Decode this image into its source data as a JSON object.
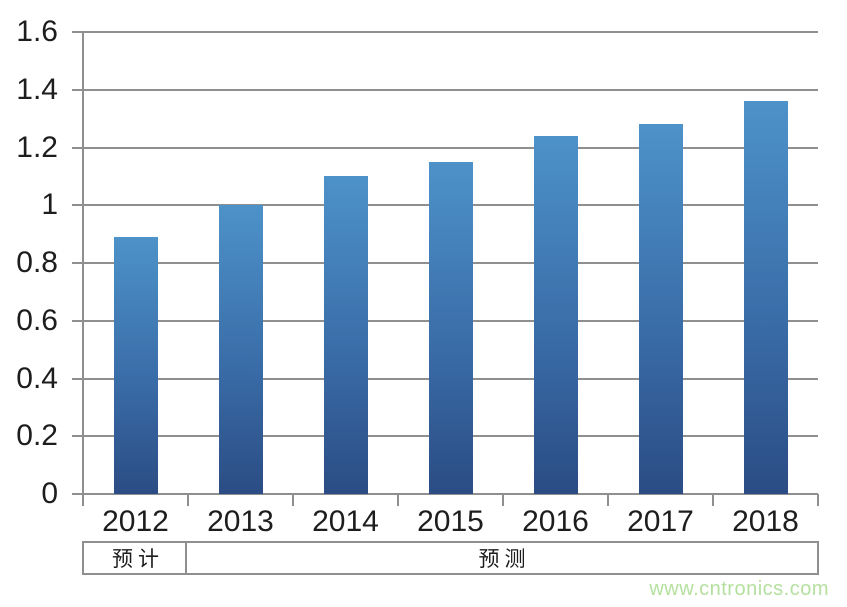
{
  "chart_data": {
    "type": "bar",
    "title": "",
    "xlabel": "",
    "ylabel": "",
    "categories": [
      "2012",
      "2013",
      "2014",
      "2015",
      "2016",
      "2017",
      "2018"
    ],
    "values": [
      0.89,
      1.0,
      1.1,
      1.15,
      1.24,
      1.28,
      1.36
    ],
    "ylim": [
      0,
      1.6
    ],
    "grid": "horizontal",
    "legend": "none",
    "yticks": [
      {
        "value": 0,
        "label": "0"
      },
      {
        "value": 0.2,
        "label": "0.2"
      },
      {
        "value": 0.4,
        "label": "0.4"
      },
      {
        "value": 0.6,
        "label": "0.6"
      },
      {
        "value": 0.8,
        "label": "0.8"
      },
      {
        "value": 1.0,
        "label": "1"
      },
      {
        "value": 1.2,
        "label": "1.2"
      },
      {
        "value": 1.4,
        "label": "1.4"
      },
      {
        "value": 1.6,
        "label": "1.6"
      }
    ],
    "period_bands": [
      {
        "label": "预计",
        "from": 0,
        "to": 0
      },
      {
        "label": "预测",
        "from": 1,
        "to": 6
      }
    ]
  },
  "colors": {
    "bar_gradient_top": "#4d92c9",
    "bar_gradient_bottom": "#2b4c84",
    "gridline": "#8f8f8f",
    "axis_text": "#1d1d1d",
    "watermark_green": "#b5e0a0"
  },
  "watermark": {
    "text": "www.cntronics.com"
  }
}
